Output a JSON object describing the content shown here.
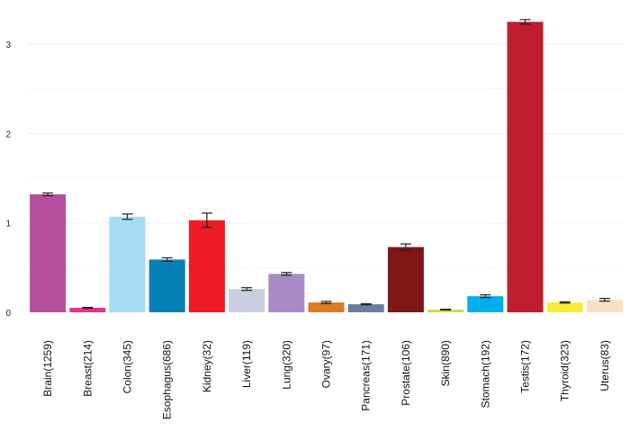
{
  "chart_data": {
    "type": "bar",
    "title": "",
    "xlabel": "",
    "ylabel": "",
    "ylim": [
      0,
      3.3
    ],
    "yticks": [
      0,
      1,
      2,
      3
    ],
    "grid": true,
    "legend": "none",
    "categories": [
      "Brain(1259)",
      "Breast(214)",
      "Colon(345)",
      "Esophagus(686)",
      "Kidney(32)",
      "Liver(119)",
      "Lung(320)",
      "Ovary(97)",
      "Pancreas(171)",
      "Prostate(106)",
      "Skin(890)",
      "Stomach(192)",
      "Testis(172)",
      "Thyroid(323)",
      "Uterus(83)"
    ],
    "values": [
      1.32,
      0.05,
      1.07,
      0.59,
      1.03,
      0.26,
      0.43,
      0.11,
      0.09,
      0.73,
      0.03,
      0.18,
      3.25,
      0.11,
      0.14
    ],
    "errors": [
      0.015,
      0.005,
      0.03,
      0.02,
      0.08,
      0.015,
      0.015,
      0.012,
      0.006,
      0.035,
      0.004,
      0.015,
      0.025,
      0.007,
      0.015
    ],
    "colors": [
      "#b5509c",
      "#e8308e",
      "#a4dcf5",
      "#0780b5",
      "#ef1c25",
      "#cbcde0",
      "#a88ac4",
      "#db7b23",
      "#6a7d9c",
      "#7f1717",
      "#c7df46",
      "#00adef",
      "#be1e2d",
      "#f5ec3a",
      "#f9dfc5"
    ]
  }
}
